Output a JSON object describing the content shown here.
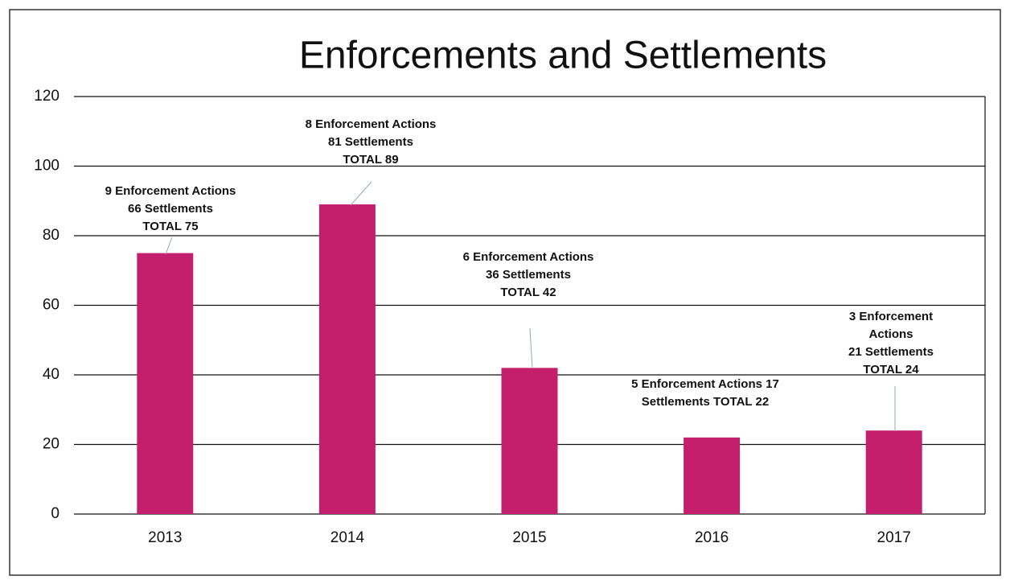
{
  "chart_data": {
    "type": "bar",
    "title": "Enforcements and Settlements",
    "categories": [
      "2013",
      "2014",
      "2015",
      "2016",
      "2017"
    ],
    "values": [
      75,
      89,
      42,
      22,
      24
    ],
    "value_labels": [
      [
        "9 Enforcement Actions",
        "66 Settlements",
        "TOTAL 75"
      ],
      [
        "8 Enforcement Actions",
        "81 Settlements",
        "TOTAL 89"
      ],
      [
        "6 Enforcement Actions",
        "36 Settlements",
        "TOTAL 42"
      ],
      [
        "5 Enforcement Actions 17",
        "Settlements TOTAL 22"
      ],
      [
        "3 Enforcement",
        "Actions",
        "21 Settlements",
        "TOTAL 24"
      ]
    ],
    "color": "#c41f6c",
    "ylim": [
      0,
      120
    ],
    "yticks": [
      0,
      20,
      40,
      60,
      80,
      100,
      120
    ],
    "grid": true
  }
}
